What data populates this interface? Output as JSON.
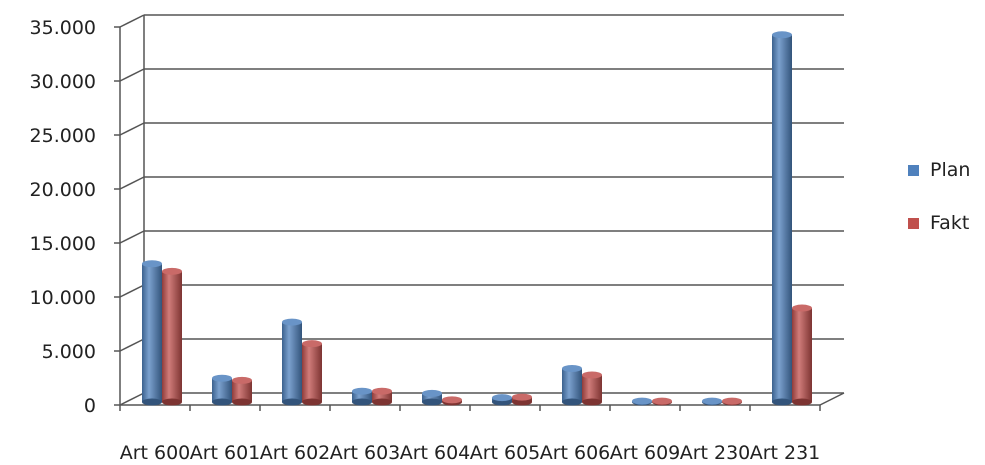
{
  "chart_data": {
    "type": "bar",
    "style": "3d-cylinder",
    "categories": [
      "Art 600",
      "Art 601",
      "Art 602",
      "Art 603",
      "Art 604",
      "Art 605",
      "Art 606",
      "Art 609",
      "Art 230",
      "Art 231"
    ],
    "series": [
      {
        "name": "Plan",
        "color": "#4f81bd",
        "values": [
          12800,
          2200,
          7400,
          1000,
          800,
          400,
          3100,
          80,
          80,
          34000
        ]
      },
      {
        "name": "Fakt",
        "color": "#c0504d",
        "values": [
          12100,
          2000,
          5400,
          1000,
          200,
          450,
          2500,
          80,
          80,
          8700
        ]
      }
    ],
    "y_ticks": [
      "0",
      "5.000",
      "10.000",
      "15.000",
      "20.000",
      "25.000",
      "30.000",
      "35.000"
    ],
    "ylim": [
      0,
      35000
    ],
    "grid": true,
    "legend_position": "right",
    "title": "",
    "xlabel": "",
    "ylabel": ""
  }
}
